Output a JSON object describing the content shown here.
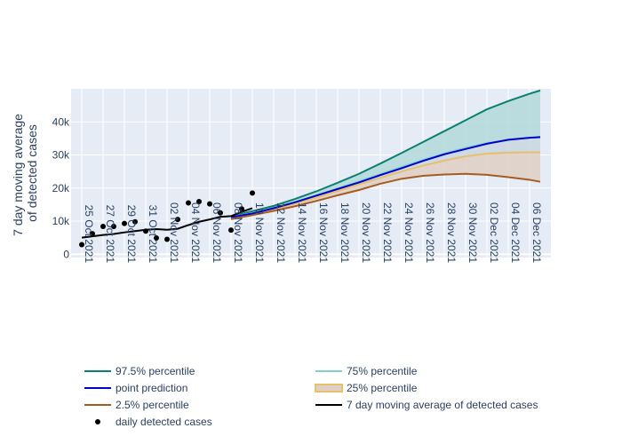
{
  "chart_data": {
    "type": "line",
    "ylabel": "7 day moving average of detected cases",
    "ylabel_lines": [
      "7 day moving average",
      "of detected cases"
    ],
    "ylim": [
      -1000,
      50000
    ],
    "yticks": [
      0,
      10000,
      20000,
      30000,
      40000
    ],
    "ytick_labels": [
      "0",
      "10k",
      "20k",
      "30k",
      "40k"
    ],
    "xlim": [
      "2021-10-24",
      "2021-12-08"
    ],
    "xticks": [
      "2021-10-25",
      "2021-10-27",
      "2021-10-29",
      "2021-10-31",
      "2021-11-02",
      "2021-11-04",
      "2021-11-06",
      "2021-11-08",
      "2021-11-10",
      "2021-11-12",
      "2021-11-14",
      "2021-11-16",
      "2021-11-18",
      "2021-11-20",
      "2021-11-22",
      "2021-11-24",
      "2021-11-26",
      "2021-11-28",
      "2021-11-30",
      "2021-12-02",
      "2021-12-04",
      "2021-12-06"
    ],
    "xtick_labels": [
      "25 Oct 2021",
      "27 Oct 2021",
      "29 Oct 2021",
      "31 Oct 2021",
      "02 Nov 2021",
      "04 Nov 2021",
      "06 Nov 2021",
      "08 Nov 2021",
      "10 Nov 2021",
      "12 Nov 2021",
      "14 Nov 2021",
      "16 Nov 2021",
      "18 Nov 2021",
      "20 Nov 2021",
      "22 Nov 2021",
      "24 Nov 2021",
      "26 Nov 2021",
      "28 Nov 2021",
      "30 Nov 2021",
      "02 Dec 2021",
      "04 Dec 2021",
      "06 Dec 2021"
    ],
    "forecast_x": [
      "2021-11-08",
      "2021-11-10",
      "2021-11-12",
      "2021-11-14",
      "2021-11-16",
      "2021-11-18",
      "2021-11-20",
      "2021-11-22",
      "2021-11-24",
      "2021-11-26",
      "2021-11-28",
      "2021-11-30",
      "2021-12-02",
      "2021-12-04",
      "2021-12-06",
      "2021-12-07"
    ],
    "series": [
      {
        "key": "p975",
        "name": "97.5% percentile",
        "color": "#0a8070",
        "fill_color": "#b3d9d9",
        "values": [
          11500,
          13000,
          14600,
          16700,
          19000,
          21600,
          24300,
          27400,
          30600,
          33900,
          37200,
          40500,
          43800,
          46300,
          48500,
          49500
        ]
      },
      {
        "key": "p75",
        "name": "75% percentile",
        "color": "#7fcfd0",
        "values": [
          11300,
          12400,
          14000,
          15800,
          17800,
          19900,
          22000,
          24200,
          26400,
          28500,
          30400,
          32200,
          33600,
          34500,
          35200,
          35300
        ]
      },
      {
        "key": "median",
        "name": "point prediction",
        "color": "#0000cc",
        "values": [
          11200,
          12300,
          13900,
          15700,
          17700,
          19700,
          21700,
          23900,
          26000,
          28200,
          30200,
          31800,
          33400,
          34600,
          35200,
          35400
        ]
      },
      {
        "key": "p25",
        "name": "25% percentile",
        "color": "#e6c06a",
        "fill_color": "#dfcfc4",
        "values": [
          11000,
          12100,
          13600,
          15300,
          17100,
          19100,
          21100,
          23100,
          25000,
          26800,
          28300,
          29600,
          30400,
          30700,
          30800,
          30800
        ]
      },
      {
        "key": "p025",
        "name": "2.5% percentile",
        "color": "#a65c1e",
        "values": [
          10600,
          11800,
          13100,
          14500,
          16100,
          17800,
          19400,
          21300,
          22800,
          23700,
          24100,
          24300,
          24000,
          23300,
          22500,
          21900
        ]
      },
      {
        "key": "ma7",
        "name": "7 day moving average of detected cases",
        "color": "#000000",
        "x": [
          "2021-10-25",
          "2021-10-26",
          "2021-10-27",
          "2021-10-28",
          "2021-10-29",
          "2021-10-30",
          "2021-10-31",
          "2021-11-01",
          "2021-11-02",
          "2021-11-03",
          "2021-11-04",
          "2021-11-05",
          "2021-11-06",
          "2021-11-07",
          "2021-11-08",
          "2021-11-09",
          "2021-11-10"
        ],
        "values": [
          5000,
          5400,
          5800,
          6100,
          6600,
          7000,
          7400,
          7600,
          7400,
          7700,
          8800,
          9800,
          10500,
          11300,
          11500,
          12800,
          13900
        ]
      },
      {
        "key": "daily",
        "name": "daily detected cases",
        "color": "#000000",
        "mode": "markers",
        "x": [
          "2021-10-25",
          "2021-10-26",
          "2021-10-27",
          "2021-10-28",
          "2021-10-29",
          "2021-10-30",
          "2021-10-31",
          "2021-11-01",
          "2021-11-02",
          "2021-11-03",
          "2021-11-04",
          "2021-11-05",
          "2021-11-06",
          "2021-11-07",
          "2021-11-08",
          "2021-11-09",
          "2021-11-10"
        ],
        "values": [
          2900,
          6200,
          8400,
          8400,
          9300,
          9800,
          7000,
          4900,
          4500,
          10500,
          15500,
          15900,
          15200,
          12500,
          7300,
          13700,
          18500
        ]
      }
    ],
    "legend": {
      "placement": "bottom",
      "items": [
        {
          "label": "97.5% percentile",
          "type": "line",
          "color": "#0a8070"
        },
        {
          "label": "75% percentile",
          "type": "line",
          "color": "#7fcfd0"
        },
        {
          "label": "point prediction",
          "type": "line",
          "color": "#0000cc"
        },
        {
          "label": "25% percentile",
          "type": "band",
          "color": "#e6c06a",
          "fill": "#dfcfc4"
        },
        {
          "label": "2.5% percentile",
          "type": "line",
          "color": "#a65c1e"
        },
        {
          "label": "7 day moving average of detected cases",
          "type": "line",
          "color": "#000000"
        },
        {
          "label": "daily detected cases",
          "type": "marker",
          "color": "#000000"
        }
      ]
    },
    "grid": true,
    "plot_bg": "#e5ecf6"
  }
}
